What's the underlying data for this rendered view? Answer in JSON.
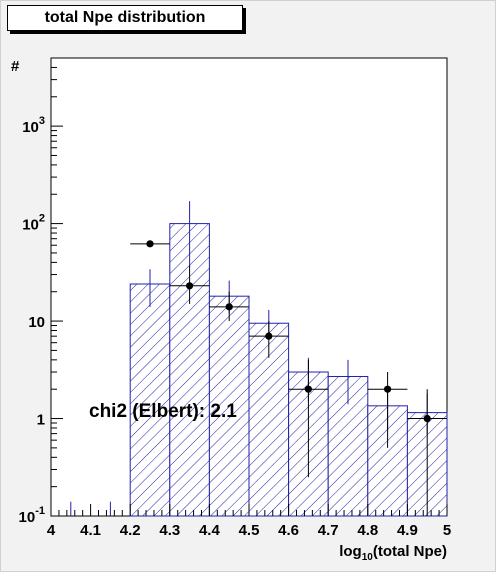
{
  "chart_data": {
    "type": "bar",
    "title": "total Npe distribution",
    "xlabel": "log10(total Npe)",
    "xlabel_base": "log",
    "xlabel_sub": "10",
    "xlabel_rest": "(total Npe)",
    "ylabel": "#",
    "xlim": [
      4.0,
      5.0
    ],
    "ylim": [
      0.1,
      5000
    ],
    "yscale": "log",
    "grid": false,
    "x_ticks": [
      "4",
      "4.1",
      "4.2",
      "4.3",
      "4.4",
      "4.5",
      "4.6",
      "4.7",
      "4.8",
      "4.9",
      "5"
    ],
    "y_ticks": [
      {
        "value": 0.1,
        "base": "10",
        "exp": "-1"
      },
      {
        "value": 1,
        "base": "1",
        "exp": ""
      },
      {
        "value": 10,
        "base": "10",
        "exp": ""
      },
      {
        "value": 100,
        "base": "10",
        "exp": "2"
      },
      {
        "value": 1000,
        "base": "10",
        "exp": "3"
      }
    ],
    "histogram": {
      "bin_edges": [
        4.0,
        4.1,
        4.2,
        4.3,
        4.4,
        4.5,
        4.6,
        4.7,
        4.8,
        4.9,
        5.0
      ],
      "values": [
        0.1,
        0.1,
        24,
        100,
        18,
        9.5,
        3.0,
        2.7,
        1.35,
        1.15
      ],
      "err_low": [
        0.1,
        0.1,
        14,
        36,
        12,
        6.5,
        1.5,
        1.4,
        0.75,
        0.7
      ],
      "err_high": [
        0.14,
        0.14,
        34,
        170,
        26,
        13,
        4.2,
        4.0,
        2.0,
        1.8
      ],
      "color": "#2222aa",
      "hatch": "diagonal"
    },
    "points": {
      "x": [
        4.25,
        4.35,
        4.45,
        4.55,
        4.65,
        4.85,
        4.95
      ],
      "y": [
        62,
        23,
        14,
        7,
        2.0,
        2.0,
        1.0
      ],
      "xerr": 0.05,
      "y_low": [
        null,
        15,
        10,
        4.2,
        0.25,
        0.5,
        0.1
      ],
      "y_high": [
        null,
        37,
        20,
        10,
        4.0,
        3.0,
        2.0
      ],
      "color": "#000000"
    },
    "annotation": "chi2 (Elbert): 2.1"
  }
}
